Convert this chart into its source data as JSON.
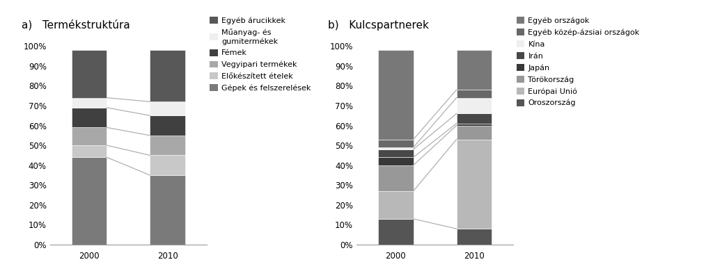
{
  "chart_a": {
    "title": "a)   Termékstruktúra",
    "years": [
      "2000",
      "2010"
    ],
    "categories": [
      "Gépek és felszerelések",
      "Előkészített ételek",
      "Vegyipari termékek",
      "Fémek",
      "Műanyag- és\ngumitermékek",
      "Egyéb árucikkek"
    ],
    "values_2000": [
      44,
      6,
      9,
      10,
      5,
      24
    ],
    "values_2010": [
      35,
      10,
      10,
      10,
      7,
      26
    ],
    "colors": [
      "#7a7a7a",
      "#c8c8c8",
      "#a8a8a8",
      "#404040",
      "#efefef",
      "#585858"
    ]
  },
  "chart_b": {
    "title": "b)   Kulcspartnerek",
    "years": [
      "2000",
      "2010"
    ],
    "categories": [
      "Oroszország",
      "Európai Unió",
      "Törökország",
      "Japán",
      "Irán",
      "Kína",
      "Egyéb közép-ázsiai országok",
      "Egyéb országok"
    ],
    "values_2000": [
      13,
      14,
      13,
      4,
      4,
      1,
      4,
      45
    ],
    "values_2010": [
      8,
      45,
      7,
      1,
      5,
      8,
      4,
      20
    ],
    "colors": [
      "#555555",
      "#b8b8b8",
      "#989898",
      "#383838",
      "#484848",
      "#efefef",
      "#686868",
      "#787878"
    ]
  },
  "bar_width": 0.45,
  "ylim": [
    0,
    105
  ],
  "yticks": [
    0,
    10,
    20,
    30,
    40,
    50,
    60,
    70,
    80,
    90,
    100
  ],
  "line_color": "#b0b0b0",
  "line_width": 0.9,
  "bg_color": "#ffffff",
  "legend_fontsize": 8.0,
  "title_fontsize": 11,
  "tick_fontsize": 8.5
}
